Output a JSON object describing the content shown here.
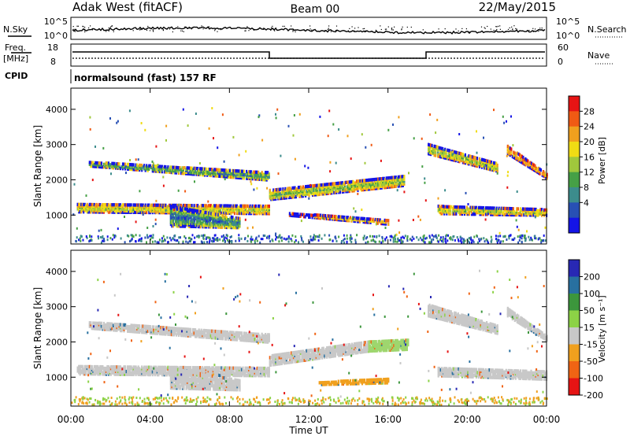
{
  "header": {
    "station": "Adak West (fitACF)",
    "beam": "Beam 00",
    "date": "22/May/2015"
  },
  "top_panel": {
    "left_label": "N.Sky",
    "right_label": "N.Search",
    "left_ticks": [
      "10^5",
      "10^0"
    ],
    "right_ticks": [
      "10^5",
      "10^0"
    ]
  },
  "freq_panel": {
    "left_label_1": "Freq.",
    "left_label_2": "[MHz]",
    "left_label_3": "CPID",
    "right_label": "Nave",
    "left_ticks": [
      "18",
      "8"
    ],
    "right_ticks": [
      "60",
      "0"
    ],
    "cpid_text": "normalsound (fast) 157 RF"
  },
  "chart_data": [
    {
      "type": "heatmap",
      "panel": "power",
      "ylabel": "Slant Range [km]",
      "ylim": [
        180,
        4600
      ],
      "yticks": [
        1000,
        2000,
        3000,
        4000
      ],
      "xlim": [
        0,
        24
      ],
      "colorbar_label": "Power [dB]",
      "colorbar_ticks": [
        "28",
        "24",
        "20",
        "16",
        "12",
        "8",
        "4"
      ],
      "colorbar_colors": [
        "#1414e6",
        "#2850b4",
        "#3c8c8c",
        "#46a046",
        "#a0c83c",
        "#f0dc14",
        "#f0a01e",
        "#f05a14",
        "#e61414"
      ],
      "regions": [
        {
          "t0": 0.9,
          "t1": 10.0,
          "r0": 2350,
          "r1": 2500,
          "r0e": 1950,
          "r1e": 2200,
          "level": 0.65
        },
        {
          "t0": 0.3,
          "t1": 10.0,
          "r0": 1050,
          "r1": 1300,
          "r0e": 1000,
          "r1e": 1250,
          "level": 0.45
        },
        {
          "t0": 5.0,
          "t1": 8.5,
          "r0": 650,
          "r1": 1250,
          "r0e": 600,
          "r1e": 900,
          "level": 0.7
        },
        {
          "t0": 10.0,
          "t1": 16.8,
          "r0": 1400,
          "r1": 1700,
          "r0e": 1800,
          "r1e": 2100,
          "level": 0.5
        },
        {
          "t0": 11.0,
          "t1": 16.0,
          "r0": 950,
          "r1": 1050,
          "r0e": 700,
          "r1e": 850,
          "level": 0.35
        },
        {
          "t0": 18.0,
          "t1": 21.5,
          "r0": 2700,
          "r1": 3000,
          "r0e": 2200,
          "r1e": 2450,
          "level": 0.5
        },
        {
          "t0": 18.5,
          "t1": 24.0,
          "r0": 1000,
          "r1": 1250,
          "r0e": 950,
          "r1e": 1150,
          "level": 0.45
        },
        {
          "t0": 22.0,
          "t1": 24.0,
          "r0": 2700,
          "r1": 2950,
          "r0e": 2000,
          "r1e": 2150,
          "level": 0.3
        }
      ]
    },
    {
      "type": "heatmap",
      "panel": "velocity",
      "ylabel": "Slant Range [km]",
      "xlabel": "Time UT",
      "ylim": [
        180,
        4600
      ],
      "yticks": [
        1000,
        2000,
        3000,
        4000
      ],
      "xlim": [
        0,
        24
      ],
      "xticks": [
        "00:00",
        "04:00",
        "08:00",
        "12:00",
        "16:00",
        "20:00",
        "00:00"
      ],
      "colorbar_label": "Velocity [m s⁻¹]",
      "colorbar_ticks": [
        "200",
        "100",
        "50",
        "15",
        "-15",
        "-50",
        "-100",
        "-200"
      ],
      "colorbar_colors": [
        "#2828b4",
        "#2870a0",
        "#3c963c",
        "#8cd246",
        "#c8c8c8",
        "#f0a01e",
        "#f06414",
        "#e61414"
      ],
      "regions": [
        {
          "t0": 0.9,
          "t1": 10.0,
          "r0": 2350,
          "r1": 2550,
          "r0e": 1950,
          "r1e": 2200,
          "color": "#c8c8c8"
        },
        {
          "t0": 0.3,
          "t1": 10.0,
          "r0": 1050,
          "r1": 1300,
          "r0e": 1000,
          "r1e": 1250,
          "color": "#c8c8c8"
        },
        {
          "t0": 5.0,
          "t1": 8.5,
          "r0": 650,
          "r1": 1250,
          "r0e": 600,
          "r1e": 900,
          "color": "#c8c8c8"
        },
        {
          "t0": 10.0,
          "t1": 15.0,
          "r0": 1300,
          "r1": 1600,
          "r0e": 1700,
          "r1e": 2000,
          "color": "#c8c8c8"
        },
        {
          "t0": 15.0,
          "t1": 17.0,
          "r0": 1700,
          "r1": 2000,
          "r0e": 1750,
          "r1e": 2050,
          "color": "#9ed66e"
        },
        {
          "t0": 12.5,
          "t1": 16.0,
          "r0": 750,
          "r1": 850,
          "r0e": 800,
          "r1e": 950,
          "color": "#f0a01e"
        },
        {
          "t0": 18.0,
          "t1": 21.5,
          "r0": 2700,
          "r1": 3050,
          "r0e": 2200,
          "r1e": 2450,
          "color": "#c8c8c8"
        },
        {
          "t0": 18.5,
          "t1": 24.0,
          "r0": 1000,
          "r1": 1250,
          "r0e": 900,
          "r1e": 1150,
          "color": "#c8c8c8"
        },
        {
          "t0": 22.0,
          "t1": 24.0,
          "r0": 2700,
          "r1": 2950,
          "r0e": 2000,
          "r1e": 2150,
          "color": "#c8c8c8"
        }
      ]
    }
  ]
}
